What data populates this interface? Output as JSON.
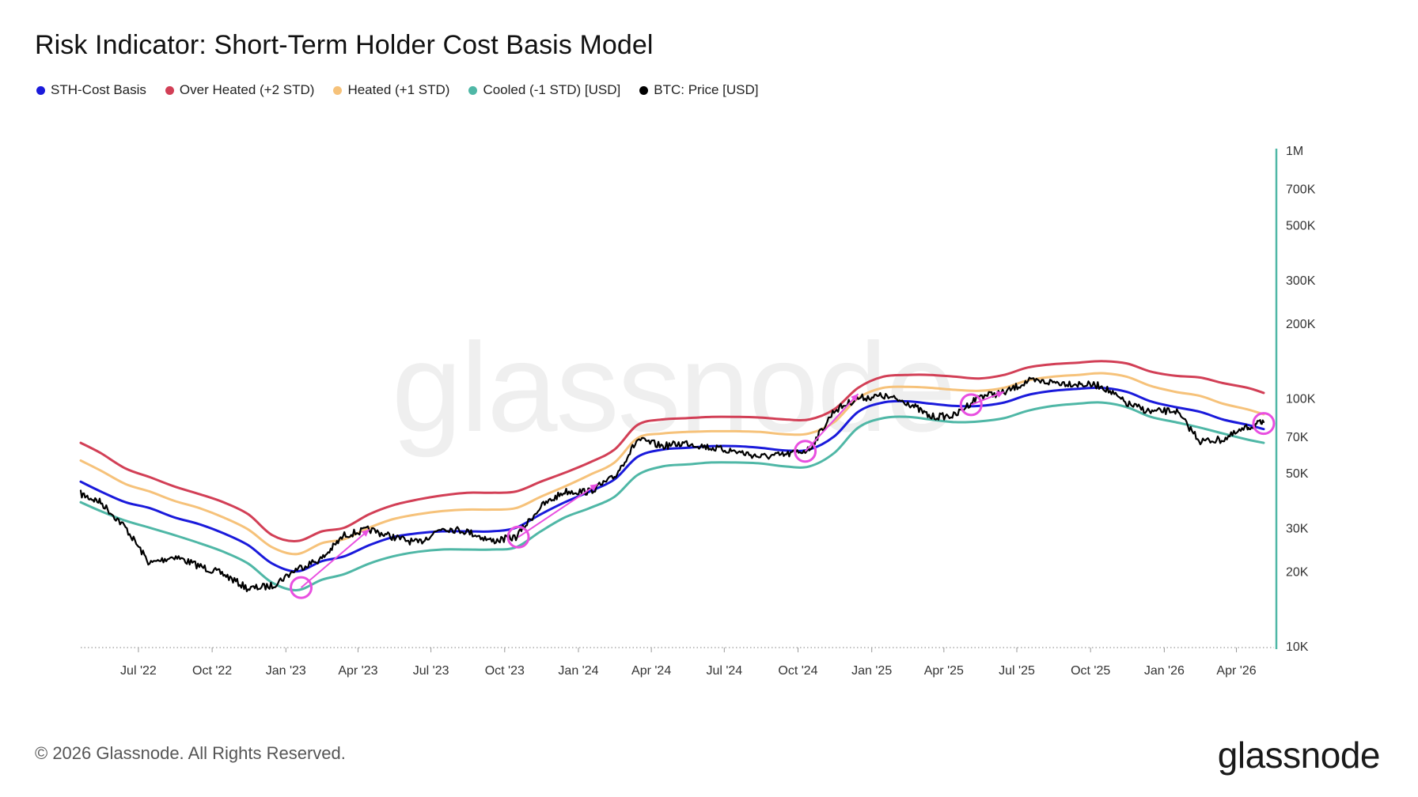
{
  "title": "Risk Indicator: Short-Term Holder Cost Basis Model",
  "legend": [
    {
      "label": "STH-Cost Basis",
      "color": "#1a1adb"
    },
    {
      "label": "Over Heated (+2 STD)",
      "color": "#d23f56"
    },
    {
      "label": "Heated (+1 STD)",
      "color": "#f6c27a"
    },
    {
      "label": "Cooled (-1 STD) [USD]",
      "color": "#4fb7a6"
    },
    {
      "label": "BTC: Price [USD]",
      "color": "#000000"
    }
  ],
  "watermark": "glassnode",
  "footer": {
    "copyright": "© 2026 Glassnode. All Rights Reserved.",
    "brand": "glassnode"
  },
  "chart_data": {
    "type": "line",
    "title": "Risk Indicator: Short-Term Holder Cost Basis Model",
    "yscale": "log",
    "ylim": [
      10000,
      1000000
    ],
    "x_ticks": [
      "Jul '22",
      "Oct '22",
      "Jan '23",
      "Apr '23",
      "Jul '23",
      "Oct '23",
      "Jan '24",
      "Apr '24",
      "Jul '24",
      "Oct '24",
      "Jan '25",
      "Apr '25",
      "Jul '25",
      "Oct '25",
      "Jan '26",
      "Apr '26"
    ],
    "y_ticks": [
      {
        "value": 10000,
        "label": "10K"
      },
      {
        "value": 20000,
        "label": "20K"
      },
      {
        "value": 30000,
        "label": "30K"
      },
      {
        "value": 50000,
        "label": "50K"
      },
      {
        "value": 70000,
        "label": "70K"
      },
      {
        "value": 100000,
        "label": "100K"
      },
      {
        "value": 200000,
        "label": "200K"
      },
      {
        "value": 300000,
        "label": "300K"
      },
      {
        "value": 500000,
        "label": "500K"
      },
      {
        "value": 700000,
        "label": "700K"
      },
      {
        "value": 1000000,
        "label": "1M"
      }
    ],
    "x": [
      "2022-04-20",
      "2022-05-15",
      "2022-06-15",
      "2022-07-15",
      "2022-08-15",
      "2022-09-15",
      "2022-10-15",
      "2022-11-15",
      "2022-12-15",
      "2023-01-15",
      "2023-02-15",
      "2023-03-15",
      "2023-04-15",
      "2023-05-15",
      "2023-06-15",
      "2023-07-15",
      "2023-08-15",
      "2023-09-15",
      "2023-10-15",
      "2023-11-15",
      "2023-12-15",
      "2024-01-15",
      "2024-02-15",
      "2024-03-15",
      "2024-04-15",
      "2024-05-15",
      "2024-06-15",
      "2024-07-15",
      "2024-08-15",
      "2024-09-15",
      "2024-10-15",
      "2024-11-15",
      "2024-12-15",
      "2025-01-15",
      "2025-02-15",
      "2025-03-15",
      "2025-04-15",
      "2025-05-15",
      "2025-06-15",
      "2025-07-15",
      "2025-08-15",
      "2025-09-15",
      "2025-10-15",
      "2025-11-15",
      "2025-12-15",
      "2026-01-15",
      "2026-02-15",
      "2026-03-15",
      "2026-04-15",
      "2026-05-05"
    ],
    "series": [
      {
        "name": "Over Heated (+2 STD)",
        "color": "#d23f56",
        "values": [
          66000,
          60000,
          52000,
          48000,
          44000,
          41000,
          38000,
          34000,
          28000,
          26500,
          29000,
          30000,
          34000,
          37000,
          39000,
          40500,
          41500,
          41500,
          42000,
          46000,
          50000,
          55000,
          62000,
          78000,
          82000,
          83000,
          84000,
          84000,
          83500,
          82000,
          82000,
          90000,
          110000,
          122000,
          124000,
          124000,
          122000,
          120000,
          124000,
          133000,
          137000,
          139000,
          141000,
          138000,
          128000,
          123000,
          121000,
          115000,
          110000,
          105000
        ]
      },
      {
        "name": "Heated (+1 STD)",
        "color": "#f6c27a",
        "values": [
          56000,
          51000,
          45000,
          42000,
          38500,
          36000,
          33000,
          29500,
          25000,
          23500,
          26000,
          27000,
          30000,
          32500,
          34000,
          35000,
          35500,
          35500,
          36000,
          40000,
          44000,
          49000,
          55000,
          69000,
          72000,
          73000,
          73500,
          73500,
          73000,
          71500,
          72000,
          80000,
          100000,
          110000,
          111000,
          110000,
          108000,
          107000,
          110000,
          118000,
          122000,
          124000,
          126000,
          122000,
          112000,
          106000,
          102000,
          95000,
          90000,
          86000
        ]
      },
      {
        "name": "STH-Cost Basis",
        "color": "#1a1adb",
        "values": [
          46000,
          42000,
          38000,
          36000,
          33000,
          31000,
          28500,
          25500,
          21500,
          20000,
          22000,
          23000,
          25500,
          27500,
          28500,
          29000,
          29000,
          29000,
          30000,
          34000,
          38000,
          42000,
          47000,
          58000,
          62000,
          63000,
          64000,
          64000,
          63000,
          61500,
          62000,
          70000,
          88000,
          96000,
          97000,
          95000,
          93000,
          93000,
          96000,
          103000,
          107000,
          109000,
          110000,
          106000,
          97000,
          92000,
          88000,
          82000,
          78000,
          75000
        ]
      },
      {
        "name": "Cooled (-1 STD) [USD]",
        "color": "#4fb7a6",
        "values": [
          38000,
          35000,
          32000,
          30000,
          28000,
          26000,
          24000,
          21500,
          18000,
          16800,
          18500,
          19500,
          21500,
          23000,
          24000,
          24500,
          24500,
          24500,
          25000,
          29000,
          33000,
          36000,
          40000,
          49000,
          53000,
          54000,
          55000,
          55000,
          54500,
          53000,
          53000,
          60000,
          76000,
          83000,
          84000,
          82000,
          80000,
          80500,
          83000,
          89000,
          93000,
          95000,
          96000,
          92000,
          84000,
          80000,
          76000,
          72000,
          68000,
          66000
        ]
      },
      {
        "name": "BTC: Price [USD]",
        "color": "#000000",
        "values": [
          41000,
          38000,
          30000,
          21500,
          23000,
          21000,
          19500,
          17000,
          17500,
          20500,
          22500,
          28000,
          29500,
          27500,
          26000,
          30000,
          29000,
          26500,
          27500,
          36500,
          42000,
          42000,
          48000,
          68000,
          64000,
          66000,
          63000,
          61000,
          58000,
          59000,
          62000,
          89000,
          100000,
          102000,
          96000,
          84000,
          85000,
          102000,
          105000,
          117000,
          116000,
          114000,
          112000,
          95000,
          88000,
          89000,
          67000,
          68000,
          76000,
          80000
        ]
      }
    ],
    "annotations": {
      "circles": [
        {
          "x": "2023-01-20",
          "y": 17200
        },
        {
          "x": "2023-10-18",
          "y": 27500
        },
        {
          "x": "2024-10-10",
          "y": 61000
        },
        {
          "x": "2025-05-05",
          "y": 94000
        },
        {
          "x": "2026-05-05",
          "y": 79000
        }
      ],
      "arrows": [
        {
          "from": {
            "x": "2023-01-20",
            "y": 17200
          },
          "to": {
            "x": "2023-04-15",
            "y": 29500
          }
        },
        {
          "from": {
            "x": "2023-10-18",
            "y": 27500
          },
          "to": {
            "x": "2024-01-25",
            "y": 45000
          }
        },
        {
          "from": {
            "x": "2024-10-10",
            "y": 61000
          },
          "to": {
            "x": "2024-12-15",
            "y": 104000
          }
        },
        {
          "from": {
            "x": "2025-05-05",
            "y": 94000
          },
          "to": {
            "x": "2025-06-15",
            "y": 106000
          }
        }
      ],
      "color": "#e84fe0"
    }
  }
}
